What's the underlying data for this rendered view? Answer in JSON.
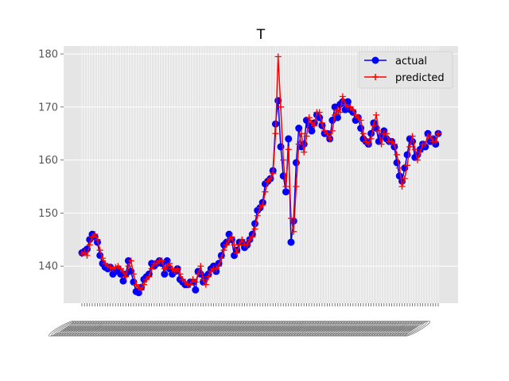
{
  "chart_data": {
    "type": "line",
    "title": "T",
    "xlabel": "",
    "ylabel": "",
    "ylim": [
      133,
      181.5
    ],
    "yticks": [
      140,
      150,
      160,
      170,
      180
    ],
    "grid": true,
    "legend_position": "upper-right",
    "x_ticklabels_illegible": true,
    "series": [
      {
        "name": "actual",
        "color": "#0000ff",
        "marker": "circle",
        "values": [
          142.5,
          142.8,
          143.2,
          145.0,
          146.0,
          145.5,
          144.5,
          142.0,
          140.5,
          139.8,
          139.5,
          139.8,
          138.5,
          139.0,
          139.5,
          138.5,
          137.2,
          138.5,
          141.0,
          139.0,
          137.0,
          135.2,
          135.0,
          136.0,
          137.5,
          138.0,
          138.5,
          140.5,
          140.0,
          140.5,
          141.0,
          140.5,
          138.5,
          141.0,
          139.5,
          138.5,
          139.0,
          139.5,
          137.5,
          137.0,
          136.5,
          136.5,
          137.0,
          137.0,
          135.5,
          139.0,
          138.5,
          137.0,
          138.0,
          138.5,
          139.5,
          140.0,
          139.0,
          140.5,
          142.0,
          144.0,
          144.5,
          146.0,
          145.0,
          142.0,
          143.0,
          144.5,
          144.5,
          143.5,
          144.0,
          145.0,
          146.0,
          148.0,
          150.5,
          151.0,
          152.0,
          155.5,
          156.0,
          156.5,
          158.0,
          166.8,
          171.2,
          162.5,
          157.0,
          154.0,
          164.0,
          144.5,
          148.5,
          159.5,
          166.0,
          162.5,
          163.0,
          167.5,
          166.5,
          165.5,
          167.0,
          168.5,
          168.0,
          166.5,
          165.0,
          165.0,
          164.0,
          167.5,
          170.0,
          168.0,
          170.5,
          171.0,
          169.5,
          171.0,
          169.5,
          169.0,
          167.5,
          168.0,
          166.0,
          164.0,
          163.5,
          163.0,
          165.0,
          167.0,
          166.0,
          163.5,
          164.5,
          165.5,
          164.0,
          163.5,
          163.5,
          162.5,
          159.5,
          157.0,
          156.0,
          158.5,
          161.0,
          164.0,
          163.5,
          160.5,
          161.0,
          162.0,
          163.0,
          162.5,
          165.0,
          163.5,
          164.0,
          163.0,
          165.0
        ]
      },
      {
        "name": "predicted",
        "color": "#ff0000",
        "marker": "plus",
        "values": [
          142.3,
          142.6,
          142.0,
          144.0,
          145.5,
          146.0,
          145.0,
          143.0,
          141.5,
          140.5,
          140.0,
          139.8,
          139.5,
          139.8,
          140.0,
          139.5,
          139.0,
          138.0,
          140.0,
          141.0,
          138.5,
          136.5,
          136.0,
          135.5,
          136.5,
          137.5,
          138.0,
          139.5,
          140.5,
          140.5,
          141.0,
          141.0,
          139.5,
          140.0,
          140.5,
          139.5,
          139.0,
          139.5,
          138.5,
          137.5,
          137.0,
          136.5,
          136.5,
          137.5,
          137.0,
          138.5,
          140.0,
          137.5,
          136.5,
          138.0,
          139.0,
          139.5,
          139.5,
          140.0,
          141.5,
          143.0,
          144.0,
          145.0,
          145.5,
          144.0,
          142.5,
          144.0,
          145.0,
          144.0,
          144.0,
          145.0,
          145.5,
          147.0,
          149.5,
          151.0,
          151.5,
          154.0,
          156.0,
          156.5,
          157.5,
          165.0,
          179.5,
          170.0,
          160.0,
          155.0,
          162.0,
          149.0,
          146.5,
          155.0,
          163.0,
          165.0,
          161.5,
          164.5,
          168.0,
          167.0,
          166.5,
          169.0,
          169.0,
          167.0,
          165.5,
          165.0,
          164.0,
          165.5,
          168.5,
          169.5,
          169.0,
          172.0,
          170.5,
          170.0,
          170.0,
          169.5,
          168.5,
          168.0,
          167.5,
          165.0,
          163.5,
          163.0,
          164.0,
          166.5,
          168.5,
          165.5,
          163.0,
          165.0,
          165.0,
          163.5,
          163.5,
          163.0,
          161.0,
          158.5,
          155.0,
          156.5,
          159.0,
          162.5,
          164.5,
          162.0,
          160.0,
          161.5,
          163.0,
          163.0,
          164.5,
          164.5,
          163.5,
          163.5,
          165.0
        ]
      }
    ]
  }
}
